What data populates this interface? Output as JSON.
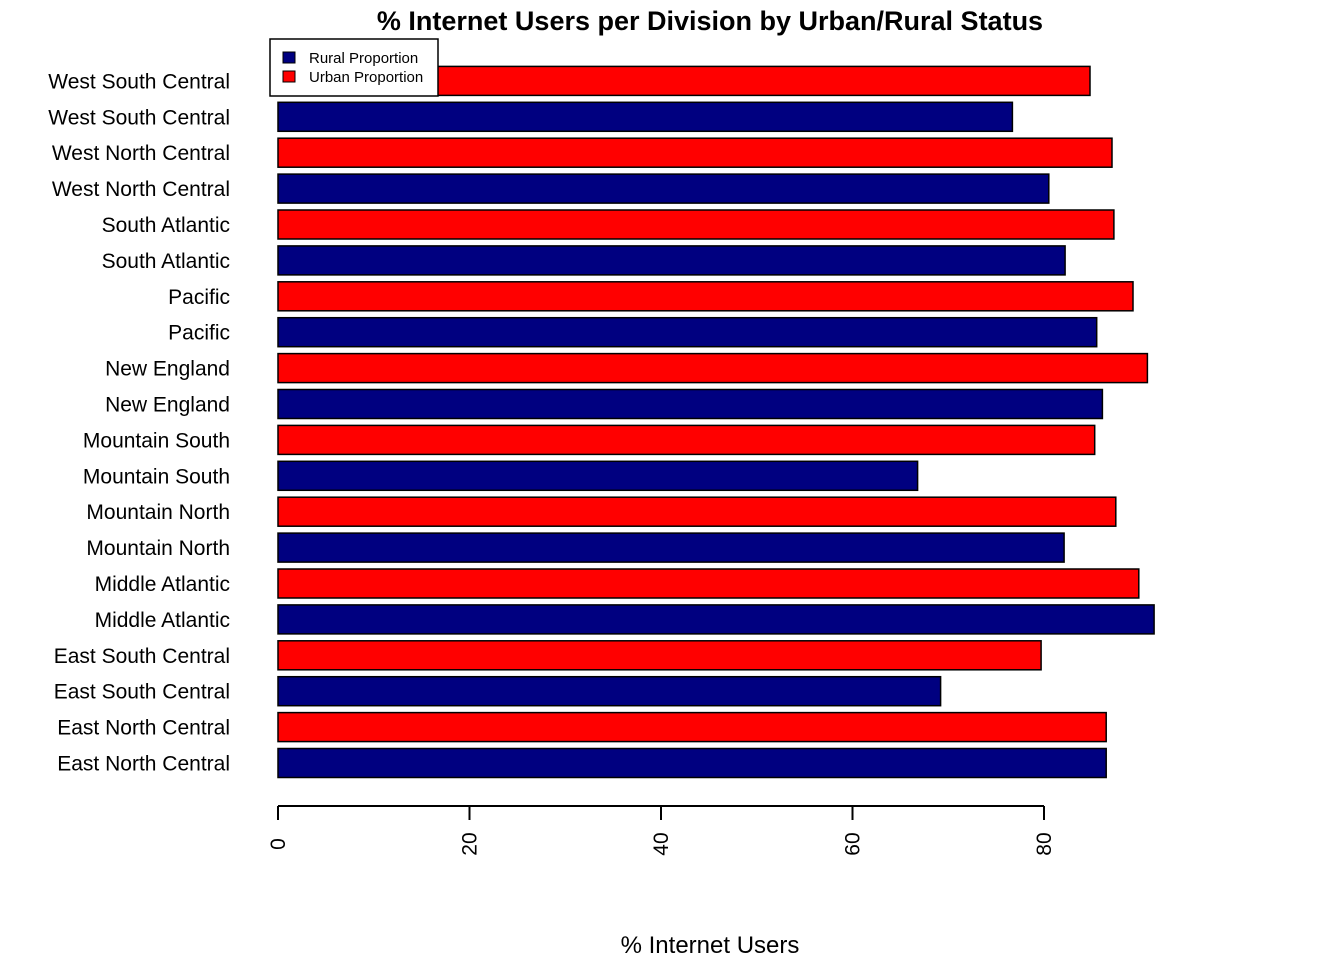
{
  "chart_data": {
    "type": "bar",
    "orientation": "horizontal",
    "title": "% Internet Users per Division by Urban/Rural Status",
    "xlabel": "% Internet Users",
    "ylabel": "",
    "xlim": [
      0,
      100
    ],
    "xticks": [
      0,
      20,
      40,
      60,
      80
    ],
    "grid": false,
    "legend_position": "top-left",
    "legend": [
      {
        "label": "Rural Proportion",
        "color": "#000080"
      },
      {
        "label": "Urban Proportion",
        "color": "#ff0000"
      }
    ],
    "bars": [
      {
        "label": "East North Central",
        "series": "Rural Proportion",
        "value": 86.5
      },
      {
        "label": "East North Central",
        "series": "Urban Proportion",
        "value": 86.5
      },
      {
        "label": "East South Central",
        "series": "Rural Proportion",
        "value": 69.2
      },
      {
        "label": "East South Central",
        "series": "Urban Proportion",
        "value": 79.7
      },
      {
        "label": "Middle Atlantic",
        "series": "Rural Proportion",
        "value": 91.5
      },
      {
        "label": "Middle Atlantic",
        "series": "Urban Proportion",
        "value": 89.9
      },
      {
        "label": "Mountain North",
        "series": "Rural Proportion",
        "value": 82.1
      },
      {
        "label": "Mountain North",
        "series": "Urban Proportion",
        "value": 87.5
      },
      {
        "label": "Mountain South",
        "series": "Rural Proportion",
        "value": 66.8
      },
      {
        "label": "Mountain South",
        "series": "Urban Proportion",
        "value": 85.3
      },
      {
        "label": "New England",
        "series": "Rural Proportion",
        "value": 86.1
      },
      {
        "label": "New England",
        "series": "Urban Proportion",
        "value": 90.8
      },
      {
        "label": "Pacific",
        "series": "Rural Proportion",
        "value": 85.5
      },
      {
        "label": "Pacific",
        "series": "Urban Proportion",
        "value": 89.3
      },
      {
        "label": "South Atlantic",
        "series": "Rural Proportion",
        "value": 82.2
      },
      {
        "label": "South Atlantic",
        "series": "Urban Proportion",
        "value": 87.3
      },
      {
        "label": "West North Central",
        "series": "Rural Proportion",
        "value": 80.5
      },
      {
        "label": "West North Central",
        "series": "Urban Proportion",
        "value": 87.1
      },
      {
        "label": "West South Central",
        "series": "Rural Proportion",
        "value": 76.7
      },
      {
        "label": "West South Central",
        "series": "Urban Proportion",
        "value": 84.8
      }
    ],
    "colors": {
      "Rural Proportion": "#000080",
      "Urban Proportion": "#ff0000"
    }
  }
}
